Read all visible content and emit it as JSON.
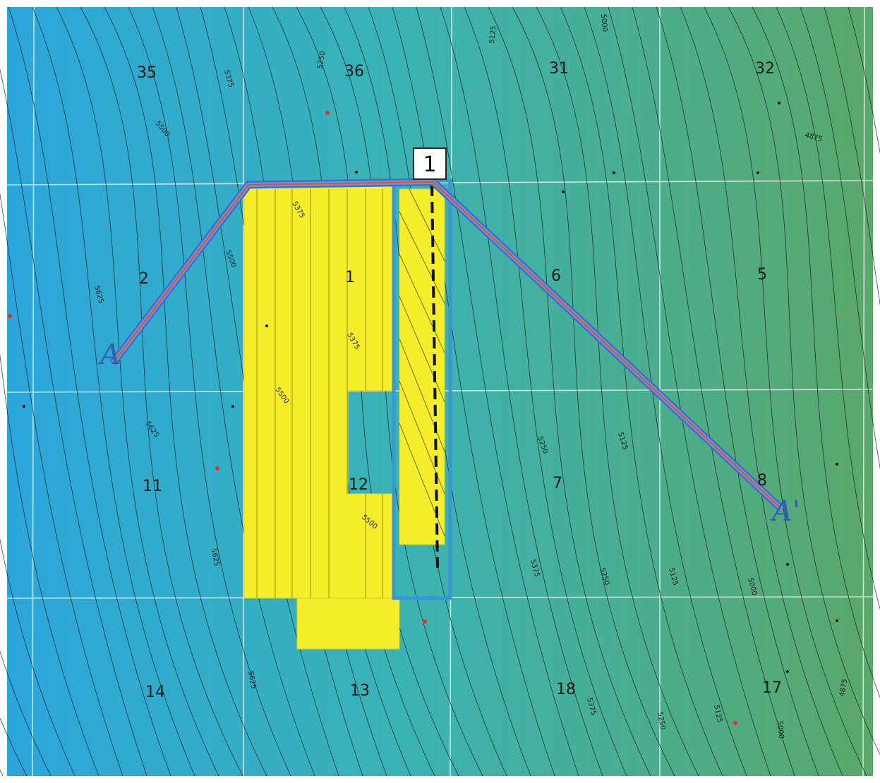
{
  "map": {
    "colors": {
      "west_gradient": "#2ba6dc",
      "east_gradient": "#5aa86a",
      "grid_line": "#e8f1f5",
      "contour_line": "#1c1c1c",
      "lease_fill": "#f6ee2a",
      "well_outline": "#3c95d6",
      "well_path": "#111111",
      "section_line_outer": "#3d6fd0",
      "section_line_inner": "#e0502a",
      "well_point": "#e53030"
    },
    "sections": [
      {
        "id": "s35",
        "label": "35"
      },
      {
        "id": "s36",
        "label": "36"
      },
      {
        "id": "s31",
        "label": "31"
      },
      {
        "id": "s32",
        "label": "32"
      },
      {
        "id": "s2",
        "label": "2"
      },
      {
        "id": "s1",
        "label": "1"
      },
      {
        "id": "s6",
        "label": "6"
      },
      {
        "id": "s5",
        "label": "5"
      },
      {
        "id": "s11",
        "label": "11"
      },
      {
        "id": "s12",
        "label": "12"
      },
      {
        "id": "s7",
        "label": "7"
      },
      {
        "id": "s8",
        "label": "8"
      },
      {
        "id": "s14",
        "label": "14"
      },
      {
        "id": "s13",
        "label": "13"
      },
      {
        "id": "s18",
        "label": "18"
      },
      {
        "id": "s17",
        "label": "17"
      }
    ],
    "contour_labels": [
      "5375",
      "5500",
      "5250",
      "5125",
      "5000",
      "4875",
      "5375",
      "5625",
      "5500",
      "5375",
      "5625",
      "5625",
      "5500",
      "5250",
      "5125",
      "5375",
      "5250",
      "5125",
      "5000",
      "5500",
      "5625",
      "5375",
      "5250",
      "5125",
      "5000",
      "4875"
    ],
    "callout": {
      "label": "1"
    },
    "cross_section": {
      "start_label": "A",
      "end_label": "A'"
    }
  }
}
